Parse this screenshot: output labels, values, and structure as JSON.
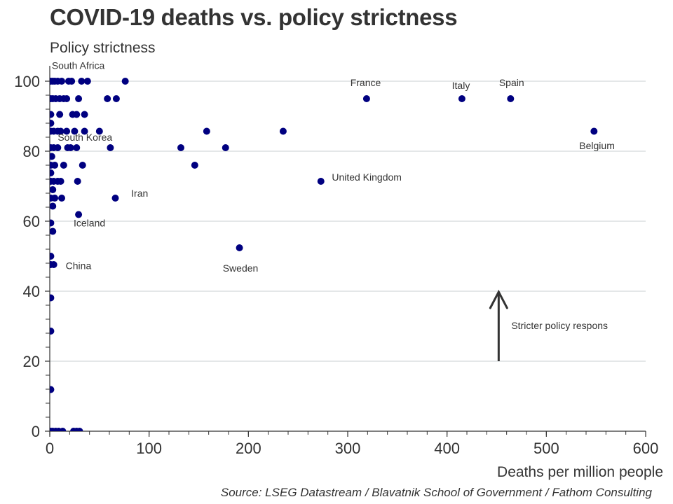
{
  "chart_data": {
    "type": "scatter",
    "title": "COVID-19 deaths vs. policy strictness",
    "ylabel": "Policy strictness",
    "xlabel": "Deaths per million people",
    "source": "Source: LSEG Datastream / Blavatnik School of Government / Fathom Consulting",
    "xlim": [
      0,
      600
    ],
    "ylim": [
      0,
      100
    ],
    "x_ticks": [
      0,
      100,
      200,
      300,
      400,
      500,
      600
    ],
    "y_ticks": [
      0,
      20,
      40,
      60,
      80,
      100
    ],
    "grid": "horizontal",
    "marker_color": "#000080",
    "points": [
      {
        "x": 1,
        "y": 100
      },
      {
        "x": 3,
        "y": 100
      },
      {
        "x": 5,
        "y": 100
      },
      {
        "x": 8,
        "y": 100
      },
      {
        "x": 12,
        "y": 100
      },
      {
        "x": 19,
        "y": 100
      },
      {
        "x": 22,
        "y": 100
      },
      {
        "x": 32,
        "y": 100
      },
      {
        "x": 38,
        "y": 100
      },
      {
        "x": 76,
        "y": 100
      },
      {
        "x": 1,
        "y": 95
      },
      {
        "x": 3,
        "y": 95
      },
      {
        "x": 6,
        "y": 95
      },
      {
        "x": 10,
        "y": 95
      },
      {
        "x": 14,
        "y": 95
      },
      {
        "x": 17,
        "y": 95
      },
      {
        "x": 29,
        "y": 95
      },
      {
        "x": 58,
        "y": 95
      },
      {
        "x": 67,
        "y": 95
      },
      {
        "x": 1,
        "y": 90.5
      },
      {
        "x": 10,
        "y": 90.5
      },
      {
        "x": 23,
        "y": 90.5
      },
      {
        "x": 27,
        "y": 90.5
      },
      {
        "x": 35,
        "y": 90.5
      },
      {
        "x": 1,
        "y": 88
      },
      {
        "x": 1,
        "y": 85.7
      },
      {
        "x": 4,
        "y": 85.7
      },
      {
        "x": 8,
        "y": 85.7
      },
      {
        "x": 11,
        "y": 85.7
      },
      {
        "x": 17,
        "y": 85.7
      },
      {
        "x": 25,
        "y": 85.7
      },
      {
        "x": 35,
        "y": 85.7
      },
      {
        "x": 50,
        "y": 85.7
      },
      {
        "x": 158,
        "y": 85.7
      },
      {
        "x": 235,
        "y": 85.7
      },
      {
        "x": 1,
        "y": 81
      },
      {
        "x": 4,
        "y": 81
      },
      {
        "x": 8,
        "y": 81
      },
      {
        "x": 18,
        "y": 81
      },
      {
        "x": 21,
        "y": 81
      },
      {
        "x": 27,
        "y": 81
      },
      {
        "x": 61,
        "y": 81
      },
      {
        "x": 132,
        "y": 81
      },
      {
        "x": 177,
        "y": 81
      },
      {
        "x": 2,
        "y": 78.5
      },
      {
        "x": 1,
        "y": 76
      },
      {
        "x": 5,
        "y": 76
      },
      {
        "x": 14,
        "y": 76
      },
      {
        "x": 33,
        "y": 76
      },
      {
        "x": 146,
        "y": 76
      },
      {
        "x": 1,
        "y": 73.8
      },
      {
        "x": 1,
        "y": 71.4
      },
      {
        "x": 4,
        "y": 71.4
      },
      {
        "x": 8,
        "y": 71.4
      },
      {
        "x": 11,
        "y": 71.4
      },
      {
        "x": 28,
        "y": 71.4
      },
      {
        "x": 273,
        "y": 71.4
      },
      {
        "x": 3,
        "y": 69
      },
      {
        "x": 1,
        "y": 66.6
      },
      {
        "x": 5,
        "y": 66.6
      },
      {
        "x": 12,
        "y": 66.6
      },
      {
        "x": 66,
        "y": 66.6
      },
      {
        "x": 3,
        "y": 64.3
      },
      {
        "x": 29,
        "y": 61.9
      },
      {
        "x": 1,
        "y": 59.5
      },
      {
        "x": 3,
        "y": 57.1
      },
      {
        "x": 191,
        "y": 52.4
      },
      {
        "x": 1,
        "y": 50
      },
      {
        "x": 1,
        "y": 47.6
      },
      {
        "x": 4,
        "y": 47.6
      },
      {
        "x": 1,
        "y": 38.1
      },
      {
        "x": 1,
        "y": 28.6
      },
      {
        "x": 1,
        "y": 11.9
      },
      {
        "x": 319,
        "y": 95
      },
      {
        "x": 415,
        "y": 95
      },
      {
        "x": 464,
        "y": 95
      },
      {
        "x": 548,
        "y": 85.7
      },
      {
        "x": 1,
        "y": 0
      },
      {
        "x": 3,
        "y": 0
      },
      {
        "x": 6,
        "y": 0
      },
      {
        "x": 9,
        "y": 0
      },
      {
        "x": 13,
        "y": 0
      },
      {
        "x": 24,
        "y": 0
      },
      {
        "x": 27,
        "y": 0
      },
      {
        "x": 30,
        "y": 0
      }
    ],
    "annotations": [
      {
        "label": "South Africa",
        "x": 2,
        "y": 103.5,
        "anchor": "start"
      },
      {
        "label": "South Korea",
        "x": 8,
        "y": 83,
        "anchor": "start"
      },
      {
        "label": "Iran",
        "x": 82,
        "y": 67,
        "anchor": "start"
      },
      {
        "label": "Iceland",
        "x": 24,
        "y": 58.5,
        "anchor": "start"
      },
      {
        "label": "China",
        "x": 16,
        "y": 46.3,
        "anchor": "start"
      },
      {
        "label": "France",
        "x": 318,
        "y": 98.6,
        "anchor": "middle"
      },
      {
        "label": "Italy",
        "x": 414,
        "y": 97.8,
        "anchor": "middle"
      },
      {
        "label": "Spain",
        "x": 465,
        "y": 98.6,
        "anchor": "middle"
      },
      {
        "label": "Belgium",
        "x": 551,
        "y": 80.6,
        "anchor": "middle"
      },
      {
        "label": "United Kingdom",
        "x": 284,
        "y": 71.6,
        "anchor": "start"
      },
      {
        "label": "Sweden",
        "x": 192,
        "y": 45.6,
        "anchor": "middle"
      }
    ],
    "arrow": {
      "label": "Stricter policy respons",
      "x": 452,
      "y_from": 20,
      "y_to": 40
    }
  }
}
